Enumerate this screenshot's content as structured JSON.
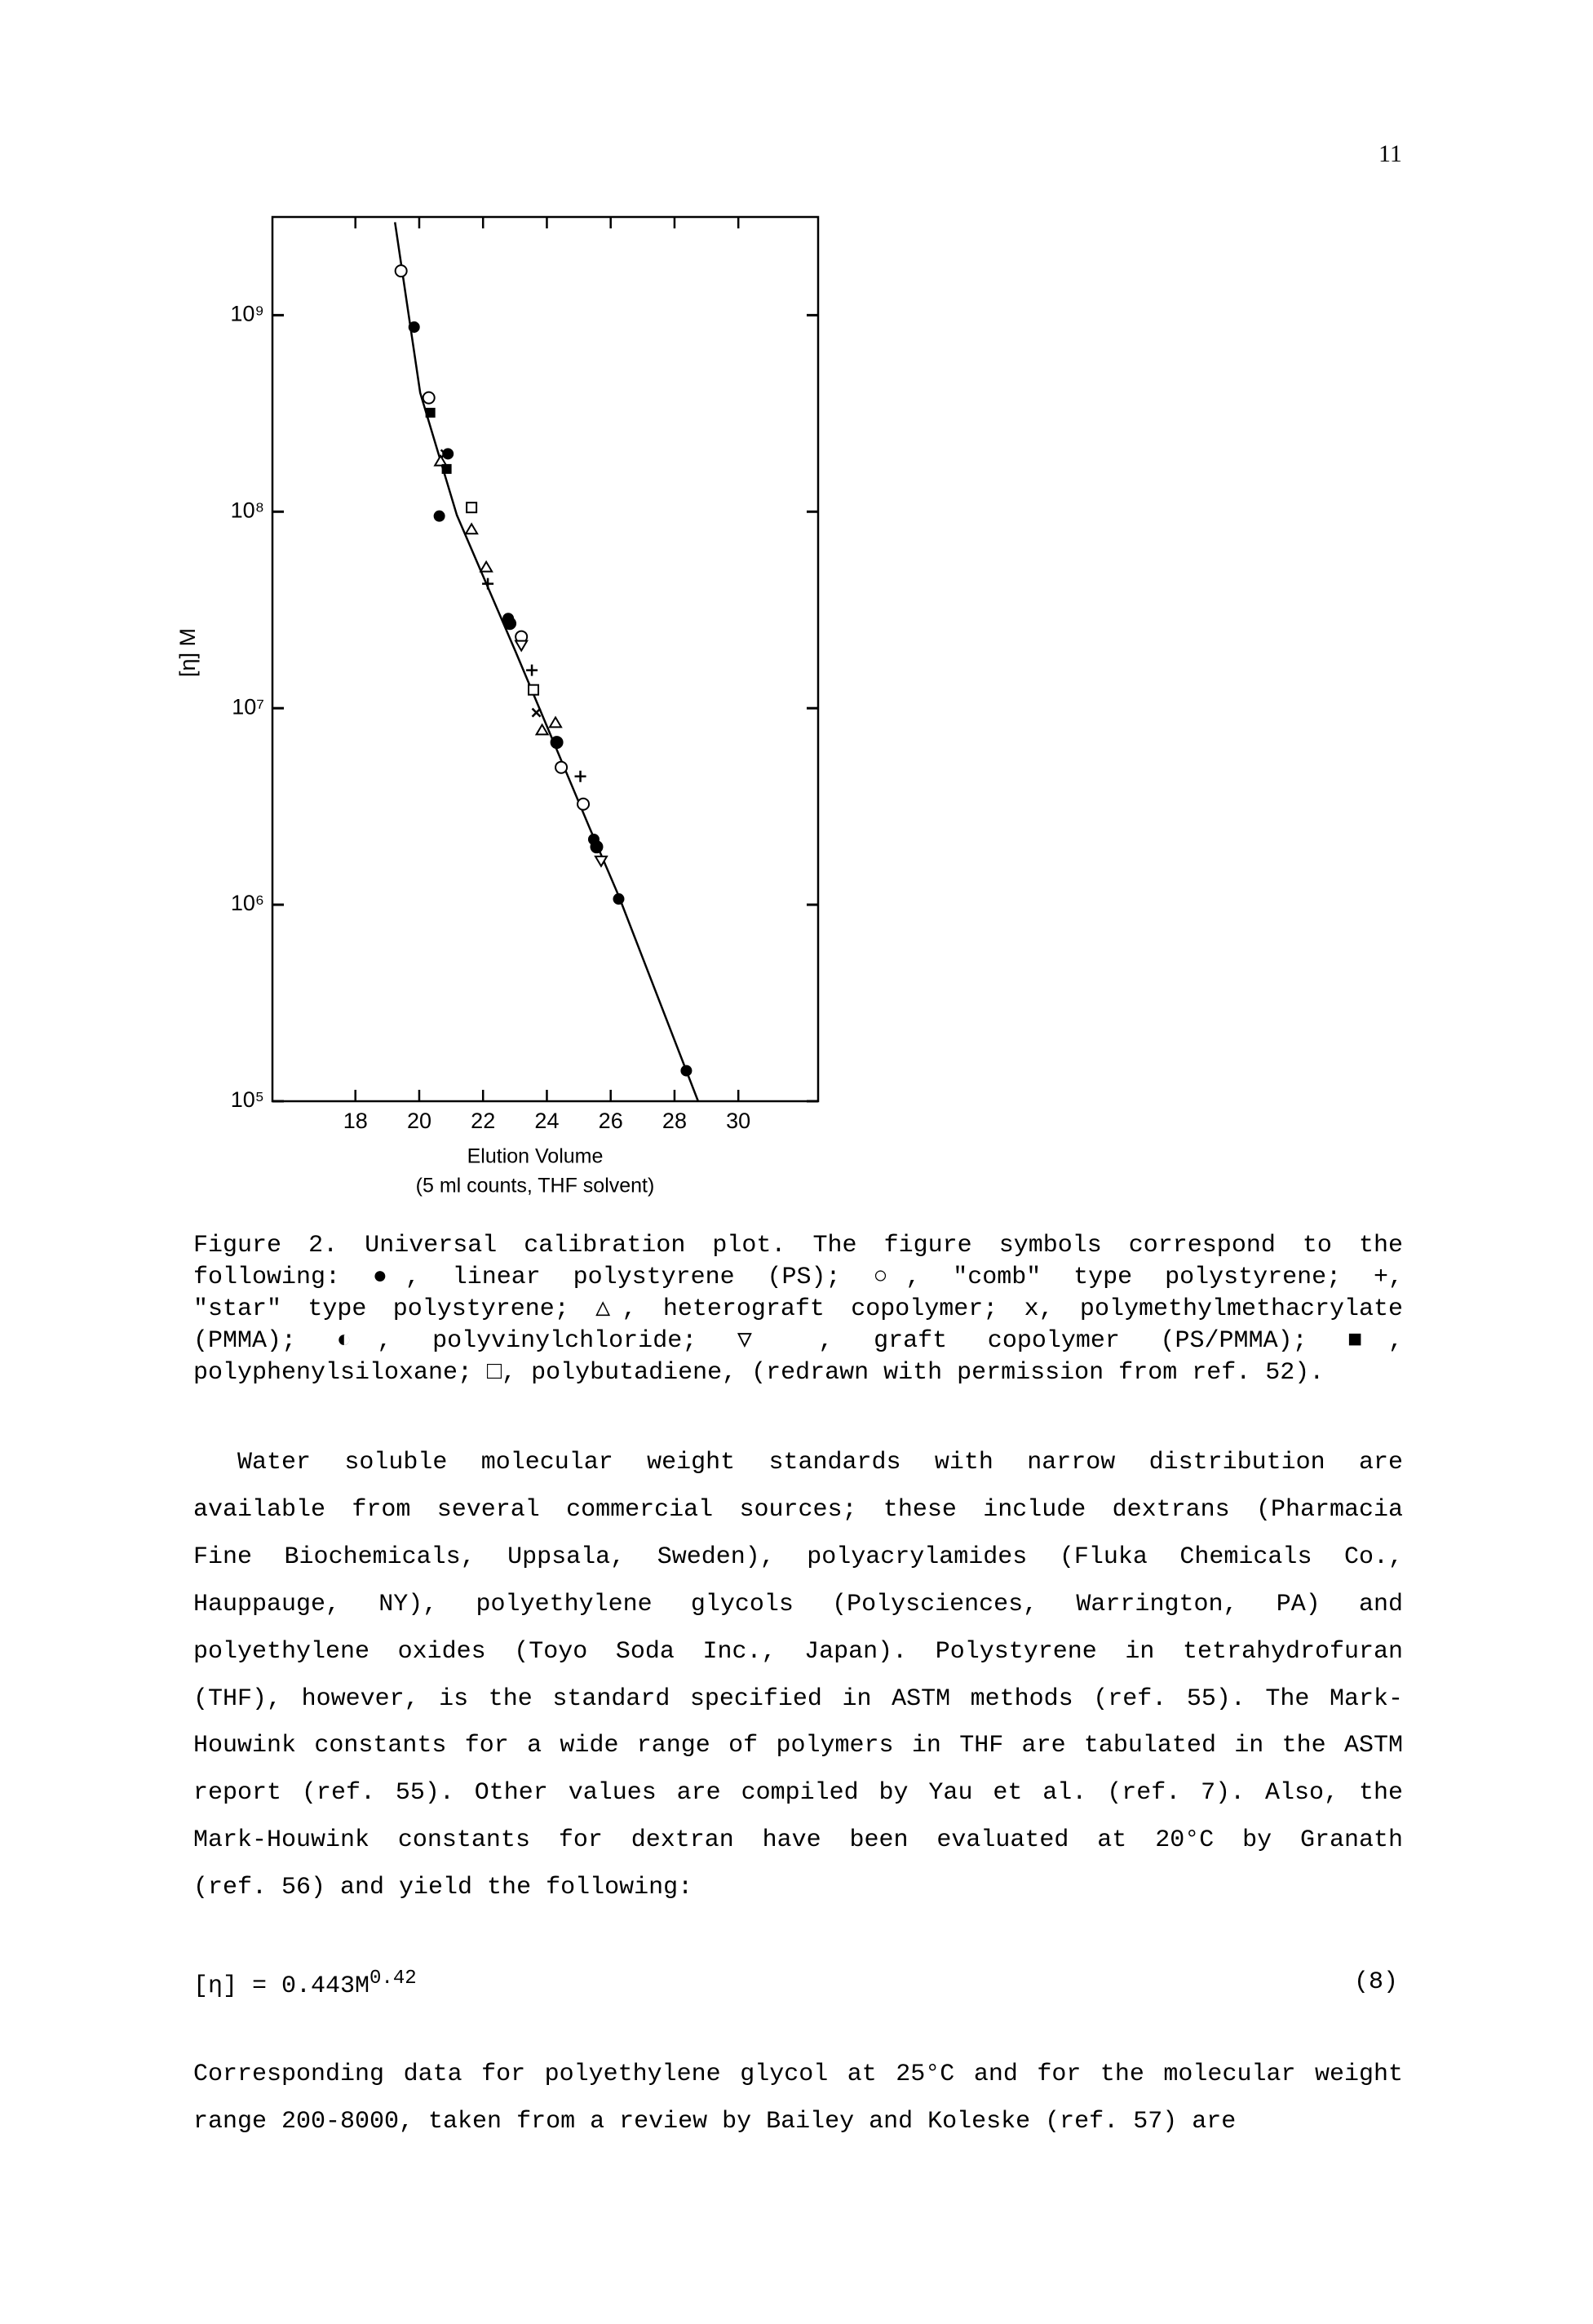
{
  "page_number": "11",
  "chart_data": {
    "type": "scatter",
    "y_label": "[η] M",
    "x_label": "Elution Volume",
    "x_label_note": "(5 ml counts, THF solvent)",
    "xlim": [
      15.4,
      32.5
    ],
    "ylim": [
      100000,
      3160000000
    ],
    "y_log": true,
    "xticks": [
      18,
      20,
      22,
      24,
      26,
      28,
      30
    ],
    "yticks": [
      {
        "value": 100000,
        "label": "10⁵"
      },
      {
        "value": 1000000,
        "label": "10⁶"
      },
      {
        "value": 10000000,
        "label": "10⁷"
      },
      {
        "value": 100000000,
        "label": "10⁸"
      },
      {
        "value": 1000000000,
        "label": "10⁹"
      }
    ],
    "fit": {
      "x": [
        19.24,
        20.03,
        21.18,
        23.02,
        25.33,
        26.25,
        28.74
      ],
      "values": [
        2970000000,
        403000000,
        96000000,
        19400000,
        2480000,
        1110000,
        100000
      ]
    },
    "series": [
      {
        "marker": "circle-filled",
        "color": "#000000",
        "x": [
          19.84,
          20.63,
          20.9,
          22.79,
          25.47,
          26.25,
          28.37
        ],
        "values": [
          870000000,
          95000000,
          197000000,
          28600000,
          2150000,
          1070000,
          143000
        ]
      },
      {
        "marker": "circle-open",
        "color": "#000000",
        "x": [
          19.43,
          20.3,
          23.2,
          24.45,
          25.14
        ],
        "values": [
          1680000000,
          380000000,
          23100000,
          5000000,
          3250000
        ]
      },
      {
        "marker": "plus",
        "color": "#000000",
        "x": [
          22.15,
          23.53,
          25.05
        ],
        "values": [
          43000000,
          15600000,
          4500000
        ]
      },
      {
        "marker": "triangle",
        "color": "#000000",
        "x": [
          20.67,
          21.64,
          22.1,
          23.85,
          24.27
        ],
        "values": [
          180000000,
          81000000,
          52000000,
          7700000,
          8400000
        ]
      },
      {
        "marker": "x",
        "color": "#000000",
        "x": [
          20.81,
          23.67
        ],
        "values": [
          197000000,
          9500000
        ]
      },
      {
        "marker": "circle-half",
        "color": "#000000",
        "x": [
          22.84,
          24.31,
          25.56
        ],
        "values": [
          27000000,
          6700000,
          1970000
        ]
      },
      {
        "marker": "triangle-down",
        "color": "#000000",
        "x": [
          23.2,
          25.7
        ],
        "values": [
          21000000,
          1680000
        ]
      },
      {
        "marker": "square-filled",
        "color": "#000000",
        "x": [
          20.35,
          20.86
        ],
        "values": [
          319000000,
          165000000
        ]
      },
      {
        "marker": "square-open",
        "color": "#000000",
        "x": [
          21.64,
          23.58
        ],
        "values": [
          105000000,
          12400000
        ]
      }
    ]
  },
  "caption": [
    "Figure 2. Universal calibration plot. The figure symbols correspond to the",
    "following: ●, linear polystyrene (PS); ○, \"comb\" type polystyrene; +,",
    "\"star\" type polystyrene; △, heterograft copolymer; x, polymethylmethacrylate",
    "(PMMA); ◐, polyvinylchloride; ▽ , graft copolymer (PS/PMMA); ■,",
    "polyphenylsiloxane; □, polybutadiene, (redrawn with permission from ref. 52)."
  ],
  "paragraph_1": [
    "Water soluble molecular weight standards with narrow distribution are",
    "available from several commercial sources; these include dextrans (Pharmacia",
    "Fine Biochemicals, Uppsala, Sweden), polyacrylamides (Fluka Chemicals Co.,",
    "Hauppauge, NY), polyethylene glycols (Polysciences, Warrington, PA) and",
    "polyethylene oxides (Toyo Soda Inc., Japan). Polystyrene in tetrahydrofuran",
    "(THF), however, is the standard specified in ASTM methods (ref. 55). The Mark-",
    "Houwink constants for a wide range of polymers in THF are tabulated in the ASTM",
    "report (ref. 55). Other values are compiled by Yau et al. (ref. 7). Also, the",
    "Mark-Houwink constants for dextran have been evaluated at 20°C by Granath",
    "(ref. 56) and yield the following:"
  ],
  "equation": {
    "base": "[η] = 0.443M",
    "exponent": "0.42",
    "number": "(8)"
  },
  "paragraph_2": [
    "Corresponding data for polyethylene glycol at 25°C and for the molecular weight",
    "range 200-8000, taken from a review by Bailey and Koleske (ref. 57) are"
  ]
}
